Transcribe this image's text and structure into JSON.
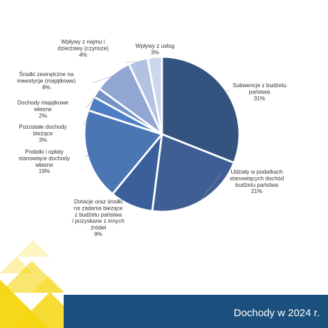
{
  "chart_data": {
    "type": "pie",
    "title": "",
    "start": "12 o'clock, clockwise",
    "slices": [
      {
        "label": "Subwencje z budżetu państwa",
        "lines": [
          "Subwencje z budżetu",
          "państwa"
        ],
        "value": 31,
        "value_label": "31%",
        "color": "#34537f"
      },
      {
        "label": "Udziały w podatkach stanowiących dochód budżetu państwa",
        "lines": [
          "Udziały w podatkach",
          "stanowiących dochód",
          "budżetu państwa"
        ],
        "value": 21,
        "value_label": "21%",
        "color": "#3f5f94"
      },
      {
        "label": "Dotacje oraz środki na zadania bieżące z budżetu państwa i pozyskane z innych źródeł",
        "lines": [
          "Dotacje oraz środki",
          "na zadania bieżące",
          "z budżetu państwa",
          "i pozyskane z innych",
          "źródeł"
        ],
        "value": 9,
        "value_label": "9%",
        "color": "#3a5f9a"
      },
      {
        "label": "Podatki i opłaty stanowiące dochody własne",
        "lines": [
          "Podatki i opłaty",
          "stanowiące dochody",
          "własne"
        ],
        "value": 19,
        "value_label": "19%",
        "color": "#4a76b4"
      },
      {
        "label": "Pozostałe dochody bieżące",
        "lines": [
          "Pozostałe dochody",
          "bieżące"
        ],
        "value": 3,
        "value_label": "3%",
        "color": "#4d7dc4"
      },
      {
        "label": "Dochody majątkowe własne",
        "lines": [
          "Dochody majątkowe",
          "własne"
        ],
        "value": 2,
        "value_label": "2%",
        "color": "#7592c6"
      },
      {
        "label": "Środki zewnętrzne na inwestycje (majątkowe)",
        "lines": [
          "Środki zewnętrzne na",
          "inwestycje (majątkowe)"
        ],
        "value": 8,
        "value_label": "8%",
        "color": "#91a6d3"
      },
      {
        "label": "Wpływy z najmu i dzierżawy (czynsze)",
        "lines": [
          "Wpływy z najmu i",
          "dzierżawy (czynsze)"
        ],
        "value": 4,
        "value_label": "4%",
        "color": "#b4c2e2"
      },
      {
        "label": "Wpływy z usług",
        "lines": [
          "Wpływy z usług"
        ],
        "value": 3,
        "value_label": "3%",
        "color": "#cdd7ec"
      }
    ]
  },
  "footer": {
    "title": "Dochody w 2024 r.",
    "band_color": "#1b4f7d",
    "accent_color": "#f5d60f"
  }
}
